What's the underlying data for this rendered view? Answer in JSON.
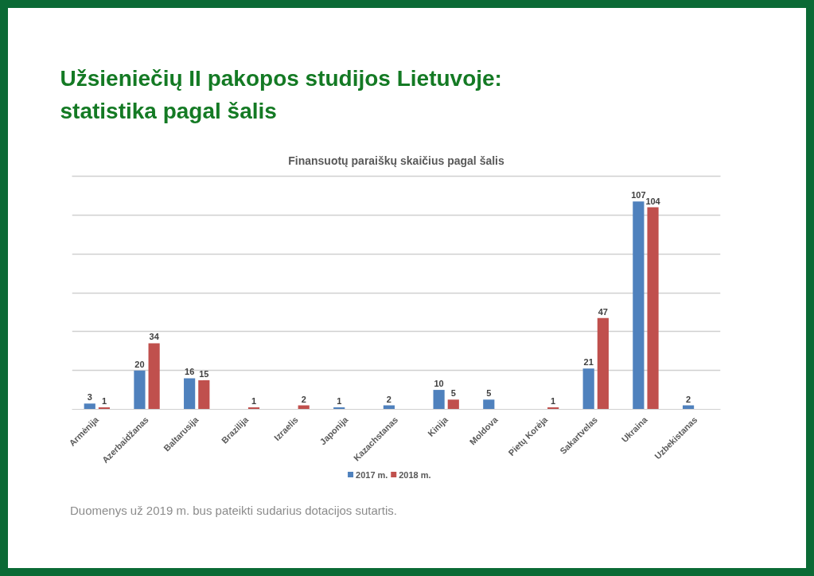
{
  "chart_data": {
    "type": "bar",
    "title": "Užsieniečių II pakopos studijos Lietuvoje: statistika pagal šalis",
    "subtitle": "Finansuotų paraiškų skaičius pagal šalis",
    "categories": [
      "Armėnija",
      "Azerbaidžanas",
      "Baltarusija",
      "Brazilija",
      "Izraelis",
      "Japonija",
      "Kazachstanas",
      "Kinija",
      "Moldova",
      "Pietų Korėja",
      "Sakartvelas",
      "Ukraina",
      "Uzbekistanas"
    ],
    "series": [
      {
        "name": "2017 m.",
        "color": "#4f81bd",
        "values": [
          3,
          20,
          16,
          null,
          null,
          1,
          2,
          10,
          5,
          null,
          21,
          107,
          2
        ]
      },
      {
        "name": "2018 m.",
        "color": "#c0504d",
        "values": [
          1,
          34,
          15,
          1,
          2,
          null,
          null,
          5,
          null,
          1,
          47,
          104,
          null
        ]
      }
    ],
    "ylim": [
      0,
      120
    ],
    "yticks": [
      {
        "value": 0,
        "label": null
      },
      {
        "value": 20,
        "label": null
      },
      {
        "value": 40,
        "label": null
      },
      {
        "value": 60,
        "label": null
      },
      {
        "value": 80,
        "label": null
      },
      {
        "value": 100,
        "label": null
      },
      {
        "value": 120,
        "label": null
      }
    ],
    "tick_labels": "x",
    "grid": "y",
    "legend": "bottom",
    "data_labels": true,
    "annotations": [
      "Duomenys už 2019 m. bus pateikti sudarius dotacijos sutartis."
    ]
  }
}
